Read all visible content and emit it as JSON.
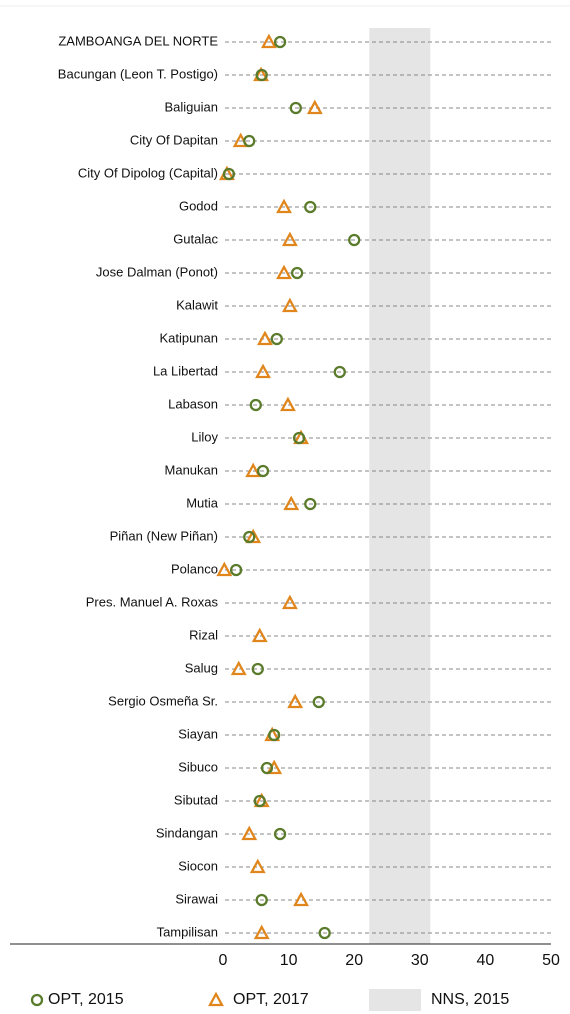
{
  "chart_data": {
    "type": "dot",
    "categories": [
      "ZAMBOANGA DEL NORTE",
      "Bacungan (Leon T. Postigo)",
      "Baliguian",
      "City Of Dapitan",
      "City Of Dipolog (Capital)",
      "Godod",
      "Gutalac",
      "Jose Dalman (Ponot)",
      "Kalawit",
      "Katipunan",
      "La Libertad",
      "Labason",
      "Liloy",
      "Manukan",
      "Mutia",
      "Piñan (New Piñan)",
      "Polanco",
      "Pres. Manuel A. Roxas",
      "Rizal",
      "Salug",
      "Sergio Osmeña Sr.",
      "Siayan",
      "Sibuco",
      "Sibutad",
      "Sindangan",
      "Siocon",
      "Sirawai",
      "Tampilisan"
    ],
    "series": [
      {
        "name": "OPT, 2015",
        "color": "#5b7b2c",
        "marker": "circle",
        "values": [
          8.7,
          5.9,
          11.1,
          4.0,
          0.9,
          13.3,
          20.0,
          11.3,
          null,
          8.2,
          17.8,
          5.0,
          11.6,
          6.1,
          13.3,
          4.0,
          2.0,
          null,
          null,
          5.3,
          14.6,
          7.8,
          6.7,
          5.6,
          8.7,
          null,
          5.9,
          15.5
        ]
      },
      {
        "name": "OPT, 2017",
        "color": "#e0861c",
        "marker": "triangle",
        "values": [
          7.0,
          5.8,
          14.0,
          2.7,
          0.6,
          9.3,
          10.2,
          9.3,
          10.2,
          6.4,
          6.1,
          9.9,
          11.9,
          4.6,
          10.4,
          4.6,
          0.2,
          10.2,
          5.6,
          2.4,
          11.0,
          7.5,
          7.8,
          5.9,
          4.0,
          5.3,
          11.9,
          5.9
        ]
      }
    ],
    "band": {
      "name": "NNS, 2015",
      "color": "#e5e5e5",
      "range": [
        22.3,
        31.6
      ]
    },
    "xlim": [
      0,
      50
    ],
    "xticks": [
      0,
      10,
      20,
      30,
      40,
      50
    ]
  }
}
